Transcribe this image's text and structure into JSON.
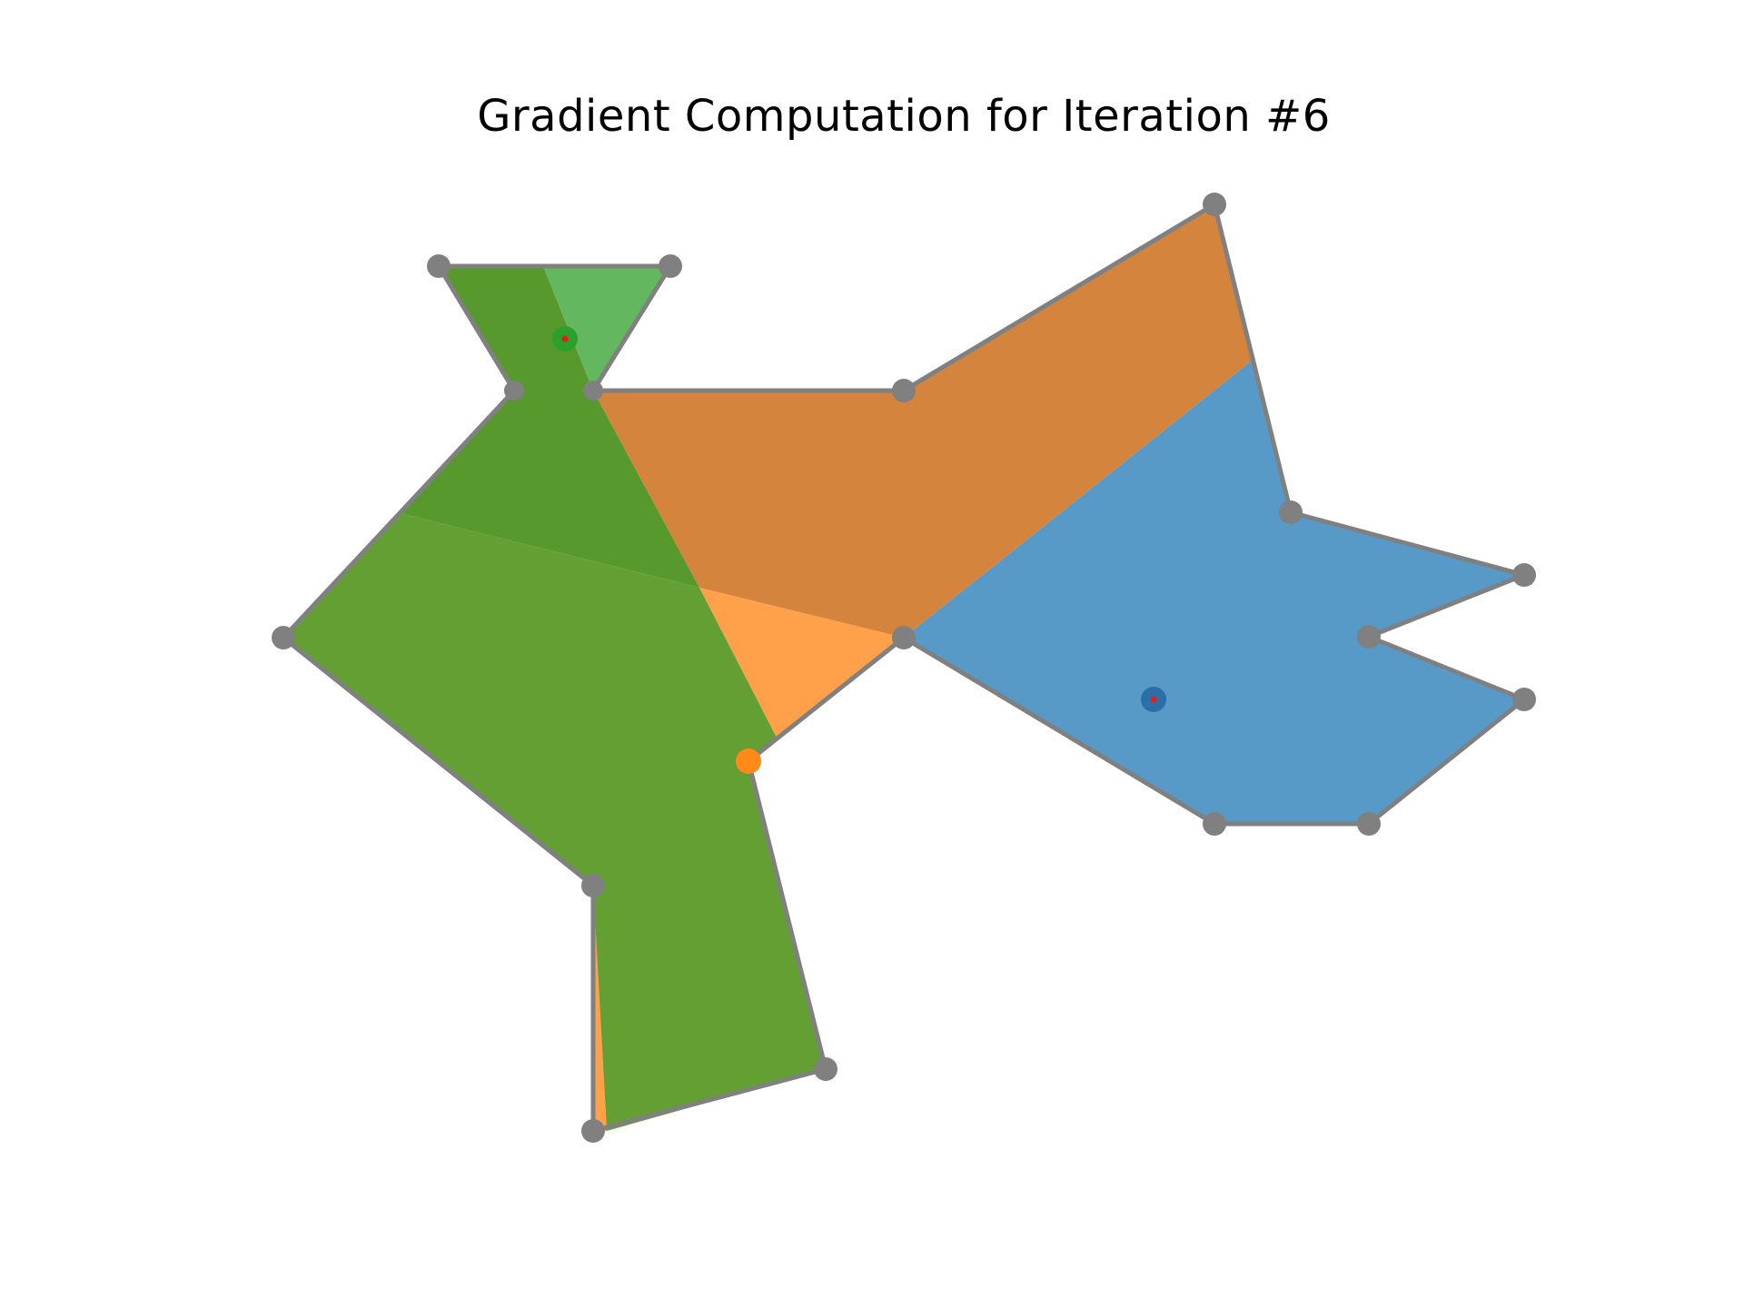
{
  "title": "Gradient Computation for Iteration #6",
  "colors": {
    "outline": "#808080",
    "vertex": "#808080",
    "blue_region": "#5799c7",
    "orange_region": "#d4843c",
    "light_orange_region": "#ffa04a",
    "green_region": "#639f33",
    "dark_green_region": "#57992d",
    "light_green_region": "#63b75e",
    "seed_blue": "#2a6fa8",
    "seed_orange": "#ff8a1a",
    "seed_green": "#2ca02c",
    "seed_center": "#e81b1b"
  },
  "seeds": [
    {
      "name": "green-seed",
      "color": "seed_green"
    },
    {
      "name": "orange-seed",
      "color": "seed_orange"
    },
    {
      "name": "blue-seed",
      "color": "seed_blue"
    }
  ]
}
